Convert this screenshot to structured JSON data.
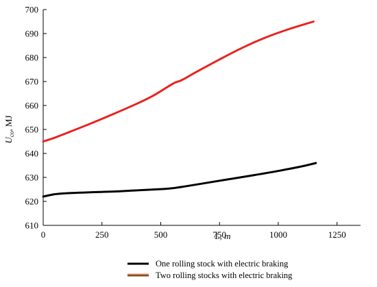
{
  "chart_data": {
    "type": "line",
    "xlabel": "L, m",
    "ylabel_main": "U",
    "ylabel_sub": "co",
    "ylabel_unit": ", MJ",
    "xlim": [
      0,
      1350
    ],
    "ylim": [
      610,
      700
    ],
    "x_ticks": [
      0,
      250,
      500,
      750,
      1000,
      1250
    ],
    "y_ticks": [
      610,
      620,
      630,
      640,
      650,
      660,
      670,
      680,
      690,
      700
    ],
    "legend_position": "bottom-center",
    "series": [
      {
        "name": "One rolling stock with electric braking",
        "color": "#000000",
        "legend_color": "#000000",
        "x": [
          0,
          50,
          100,
          200,
          300,
          400,
          500,
          550,
          600,
          700,
          800,
          900,
          1000,
          1100,
          1160
        ],
        "y": [
          622.0,
          623.0,
          623.4,
          623.8,
          624.1,
          624.6,
          625.1,
          625.5,
          626.2,
          627.8,
          629.4,
          631.0,
          632.7,
          634.6,
          636.0
        ]
      },
      {
        "name": "Two rolling stocks with electric braking",
        "color": "#e8231f",
        "legend_color": "#8b4a0a",
        "x": [
          0,
          50,
          100,
          200,
          300,
          400,
          470,
          530,
          560,
          590,
          650,
          750,
          850,
          950,
          1050,
          1150
        ],
        "y": [
          645.0,
          646.6,
          648.5,
          652.4,
          656.5,
          660.8,
          664.2,
          667.8,
          669.5,
          670.6,
          673.9,
          679.2,
          684.2,
          688.5,
          692.0,
          695.0
        ]
      }
    ]
  }
}
